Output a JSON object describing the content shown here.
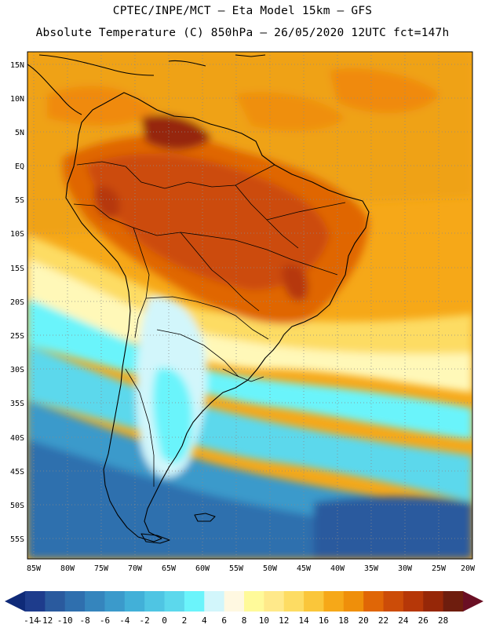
{
  "header": {
    "title_line1": "CPTEC/INPE/MCT –  Eta Model 15km – GFS",
    "title_line2": "Absolute Temperature (C) 850hPa – 26/05/2020 12UTC fct=147h"
  },
  "map": {
    "lat_labels": [
      "15N",
      "10N",
      "5N",
      "EQ",
      "5S",
      "10S",
      "15S",
      "20S",
      "25S",
      "30S",
      "35S",
      "40S",
      "45S",
      "50S",
      "55S"
    ],
    "lon_labels": [
      "85W",
      "80W",
      "75W",
      "70W",
      "65W",
      "60W",
      "55W",
      "50W",
      "45W",
      "40W",
      "35W",
      "30W",
      "25W",
      "20W"
    ],
    "lat_range": [
      16.5,
      -58.5
    ],
    "lon_range": [
      -86.5,
      -20.5
    ],
    "grid_style": "dotted"
  },
  "colorbar": {
    "ticks": [
      "-14",
      "-12",
      "-10",
      "-8",
      "-6",
      "-4",
      "-2",
      "0",
      "2",
      "4",
      "6",
      "8",
      "10",
      "12",
      "14",
      "16",
      "18",
      "20",
      "22",
      "24",
      "26",
      "28"
    ],
    "colors": [
      "#1e3c8c",
      "#2a5a9e",
      "#2f6fae",
      "#3585bd",
      "#3b9acb",
      "#42b0d8",
      "#4fc5e3",
      "#5cd8ec",
      "#6bf4fb",
      "#d2f6fb",
      "#fff8e1",
      "#fffa9a",
      "#ffe98a",
      "#fddc63",
      "#fac63a",
      "#f6a818",
      "#ef8f0a",
      "#e06606",
      "#cc4c08",
      "#b63708",
      "#962708",
      "#6e1d0e"
    ],
    "under_color": "#0f2a78",
    "over_color": "#6a0f24"
  }
}
